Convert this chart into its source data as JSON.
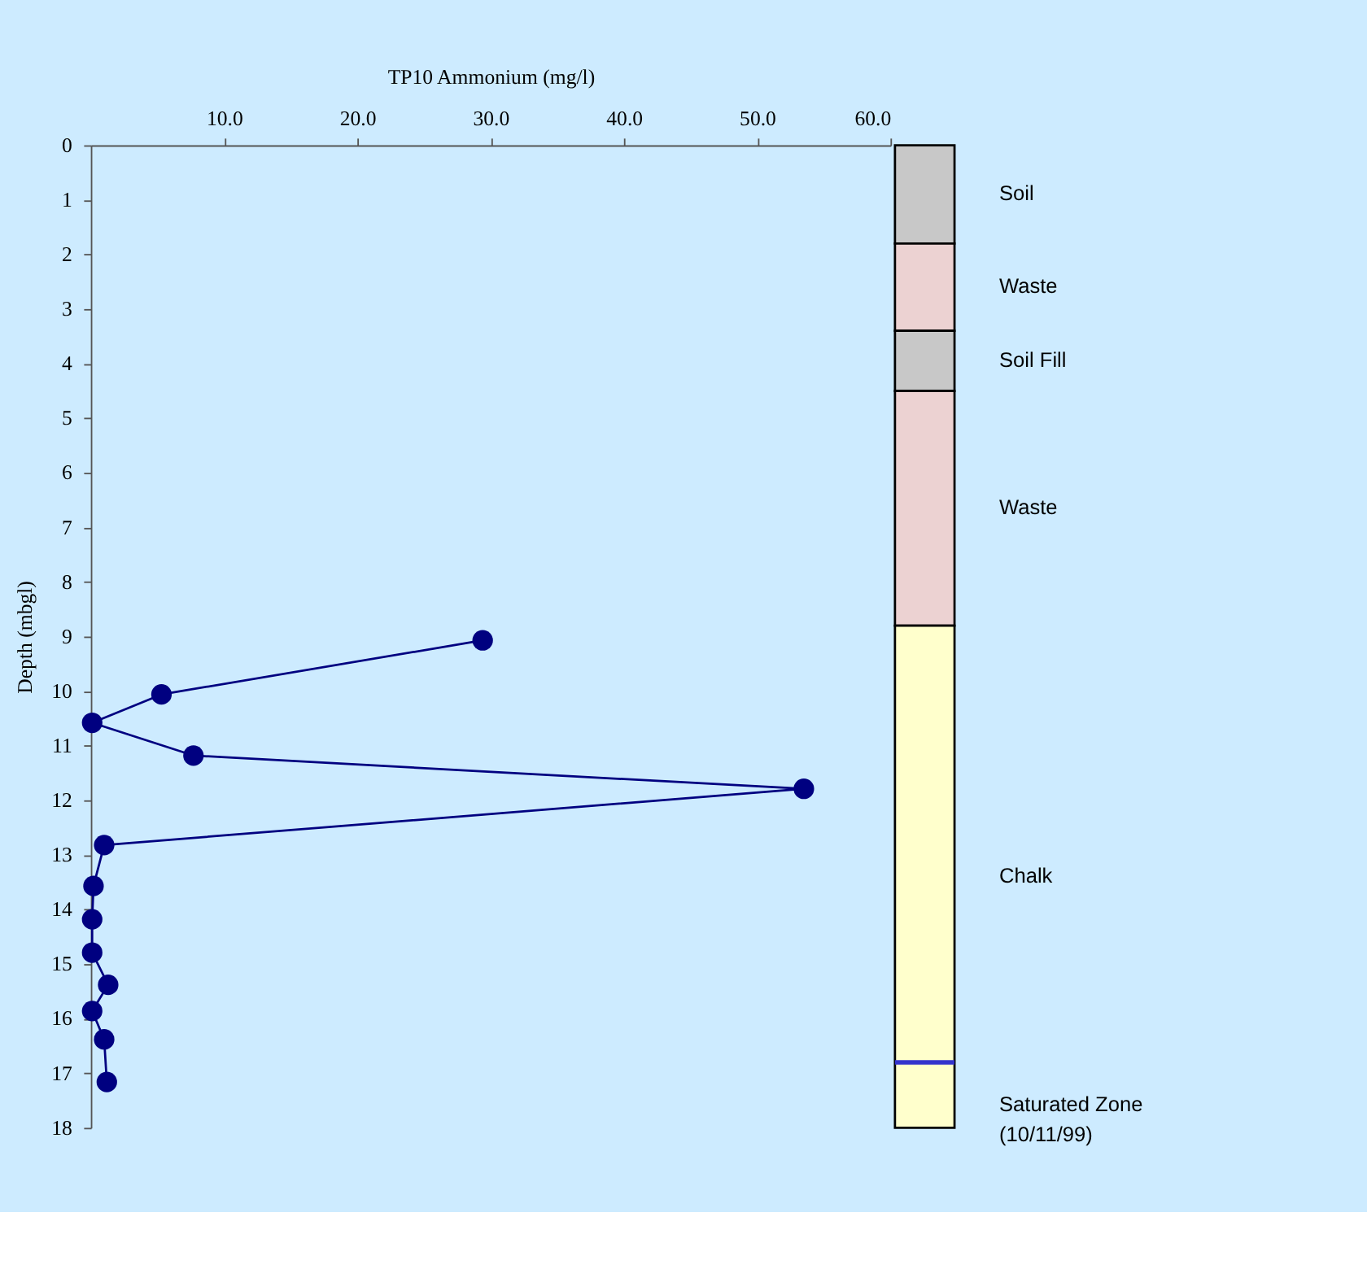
{
  "chart_data": [
    {
      "type": "line",
      "xlabel": "TP10 Ammonium (mg/l)",
      "ylabel": "Depth (mbgl)",
      "x": [
        29.4,
        5.3,
        0.1,
        7.7,
        53.5,
        1.0,
        0.2,
        0.1,
        0.1,
        1.3,
        0.1,
        1.0,
        1.2
      ],
      "series": [
        {
          "color": "#000080",
          "values": [
            9.07,
            10.06,
            10.58,
            11.18,
            11.79,
            12.82,
            13.57,
            14.18,
            14.79,
            15.38,
            15.86,
            16.38,
            17.16
          ]
        }
      ],
      "xlim": [
        0,
        60
      ],
      "xticks": [
        {
          "value": 10,
          "label": "10.0"
        },
        {
          "value": 20,
          "label": "20.0"
        },
        {
          "value": 30,
          "label": "30.0"
        },
        {
          "value": 40,
          "label": "40.0"
        },
        {
          "value": 50,
          "label": "50.0"
        },
        {
          "value": 60,
          "label": "60.0"
        }
      ],
      "ylim": [
        18,
        0
      ],
      "yticks": [
        0,
        1,
        2,
        3,
        4,
        5,
        6,
        7,
        8,
        9,
        10,
        11,
        12,
        13,
        14,
        15,
        16,
        17,
        18
      ],
      "marker": "circle",
      "line_style": "solid",
      "grid": false
    },
    {
      "type": "bar",
      "stacked": true,
      "categories": [
        null
      ],
      "series": [
        {
          "name": "Soil",
          "color": "#c8c8c8",
          "values": [
            1.8
          ]
        },
        {
          "name": "Waste",
          "color": "#ecd2d2",
          "values": [
            1.6
          ]
        },
        {
          "name": "Soil Fill",
          "color": "#c8c8c8",
          "values": [
            1.1
          ]
        },
        {
          "name": "Waste",
          "color": "#ecd2d2",
          "values": [
            4.3
          ]
        },
        {
          "name": "Chalk",
          "color": "#ffffcc",
          "values": [
            9.2
          ]
        }
      ],
      "ylim": [
        18,
        0
      ],
      "tick_labels": false,
      "ref_lines": [
        {
          "axis": "y",
          "value": 16.8,
          "label": "Saturated Zone\n(10/11/99)",
          "color": "#3333cc",
          "line_style": "solid"
        }
      ]
    }
  ]
}
